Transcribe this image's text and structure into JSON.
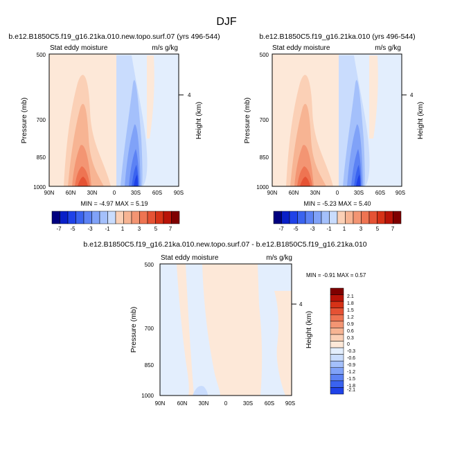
{
  "page": {
    "title": "DJF"
  },
  "colors": {
    "neg": [
      "#00007f",
      "#0a20c8",
      "#1f42e8",
      "#3a63ef",
      "#5c82f4",
      "#80a2f8",
      "#a4c0fb",
      "#c9dcfd",
      "#e3eefd"
    ],
    "pos": [
      "#fde8d8",
      "#fbd0b6",
      "#f7b493",
      "#f39573",
      "#ee7452",
      "#e55234",
      "#d63217",
      "#b81308",
      "#7f0000"
    ]
  },
  "chart_data": [
    {
      "type": "contour",
      "id": "top-left",
      "title": "b.e12.B1850C5.f19_g16.21ka.010.new.topo.surf.07 (yrs 496-544)",
      "left_string": "Stat eddy moisture",
      "right_string": "m/s g/kg",
      "ylabel": "Pressure (mb)",
      "ylabel_right": "Height (km)",
      "x_ticks": [
        "90N",
        "60N",
        "30N",
        "0",
        "30S",
        "60S",
        "90S"
      ],
      "y_ticks": [
        "500",
        "700",
        "850",
        "1000"
      ],
      "right_ticks": [
        "4"
      ],
      "ylim": [
        1000,
        500
      ],
      "min_max": "MIN =  -4.97  MAX =   5.19",
      "colorbar": [
        "-7",
        "-5",
        "-3",
        "-1",
        "1",
        "3",
        "5",
        "7"
      ]
    },
    {
      "type": "contour",
      "id": "top-right",
      "title": "b.e12.B1850C5.f19_g16.21ka.010 (yrs 496-544)",
      "left_string": "Stat eddy moisture",
      "right_string": "m/s g/kg",
      "ylabel": "Pressure (mb)",
      "ylabel_right": "Height (km)",
      "x_ticks": [
        "90N",
        "60N",
        "30N",
        "0",
        "30S",
        "60S",
        "90S"
      ],
      "y_ticks": [
        "500",
        "700",
        "850",
        "1000"
      ],
      "right_ticks": [
        "4"
      ],
      "ylim": [
        1000,
        500
      ],
      "min_max": "MIN =  -5.23  MAX =   5.40",
      "colorbar": [
        "-7",
        "-5",
        "-3",
        "-1",
        "1",
        "3",
        "5",
        "7"
      ]
    },
    {
      "type": "contour",
      "id": "difference",
      "title": "b.e12.B1850C5.f19_g16.21ka.010.new.topo.surf.07 - b.e12.B1850C5.f19_g16.21ka.010",
      "left_string": "Stat eddy moisture",
      "right_string": "m/s g/kg",
      "ylabel": "Pressure (mb)",
      "ylabel_right": "Height (km)",
      "x_ticks": [
        "90N",
        "60N",
        "30N",
        "0",
        "30S",
        "60S",
        "90S"
      ],
      "y_ticks": [
        "500",
        "700",
        "850",
        "1000"
      ],
      "right_ticks": [
        "4"
      ],
      "ylim": [
        1000,
        500
      ],
      "min_max": "MIN =  -0.91  MAX =   0.57",
      "colorbar": [
        "2.1",
        "1.8",
        "1.5",
        "1.2",
        "0.9",
        "0.6",
        "0.3",
        "0",
        "-0.3",
        "-0.6",
        "-0.9",
        "-1.2",
        "-1.5",
        "-1.8",
        "-2.1"
      ]
    }
  ]
}
